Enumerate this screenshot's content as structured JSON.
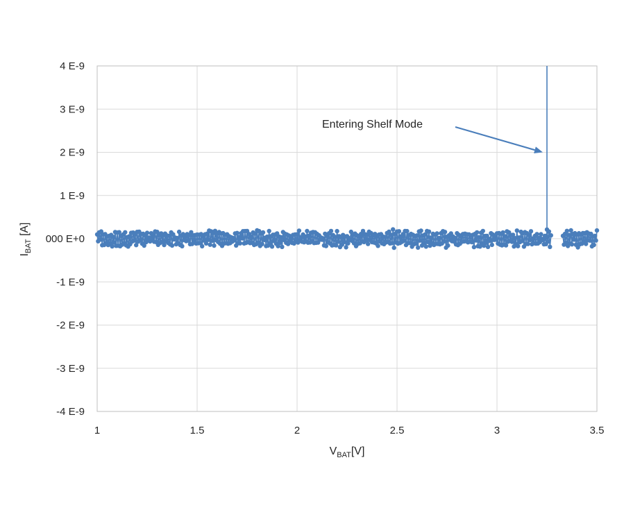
{
  "chart_data": {
    "type": "scatter",
    "x_title_main": "V",
    "x_title_sub": "BAT",
    "x_title_unit": "[V]",
    "y_title_main": "I",
    "y_title_sub": "BAT",
    "y_title_unit": " [A]",
    "xlim": [
      1,
      3.5
    ],
    "ylim": [
      -4e-09,
      4e-09
    ],
    "x_ticks": [
      1,
      1.5,
      2,
      2.5,
      3,
      3.5
    ],
    "x_tick_labels": [
      "1",
      "1.5",
      "2",
      "2.5",
      "3",
      "3.5"
    ],
    "y_ticks": [
      4e-09,
      3e-09,
      2e-09,
      1e-09,
      0,
      -1e-09,
      -2e-09,
      -3e-09,
      -4e-09
    ],
    "y_tick_labels": [
      "4 E-9",
      "3 E-9",
      "2 E-9",
      "1 E-9",
      "000 E+0",
      "-1 E-9",
      "-2 E-9",
      "-3 E-9",
      "-4 E-9"
    ],
    "grid": true,
    "series_color": "#4a7ebb",
    "series": [
      {
        "noise_amplitude": 1.6e-10,
        "x_start": 1.0,
        "x_end": 3.5,
        "x_step": 0.005,
        "gap": [
          3.27,
          3.33
        ],
        "spike": {
          "x": 3.25,
          "y_from": 0,
          "y_to": 4e-09
        }
      }
    ],
    "annotation": {
      "text": "Entering Shelf Mode",
      "arrow_target": {
        "x": 3.25,
        "y": 2e-09
      }
    }
  }
}
